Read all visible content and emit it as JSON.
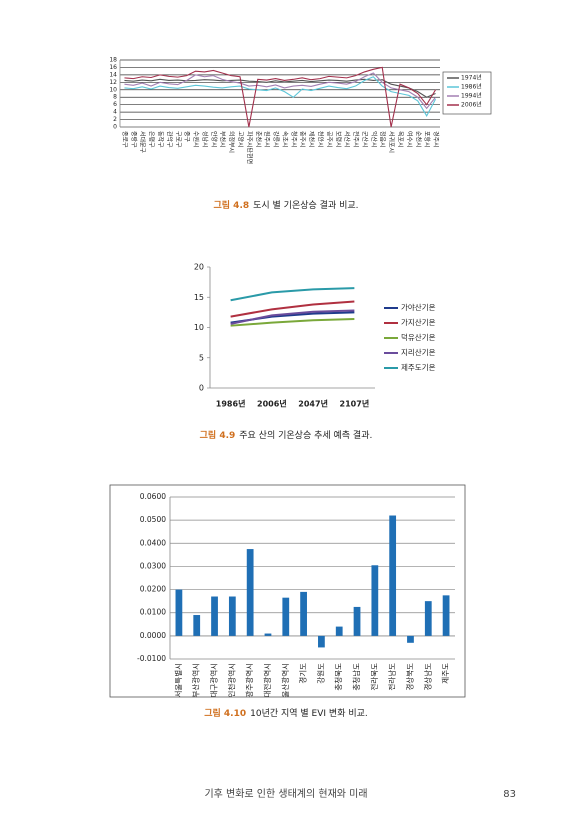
{
  "chart_data": [
    {
      "type": "line",
      "caption": {
        "label": "그림 4.8",
        "text": "도시 별 기온상승 결과 비교."
      },
      "categories": [
        "종로구",
        "중랑구",
        "서대문구",
        "은평구",
        "동작구",
        "관악구",
        "구로구",
        "중구",
        "수원시",
        "성남시",
        "안양시",
        "부천시",
        "의정부시",
        "고양시",
        "파주시탄현면",
        "춘천시",
        "원주시",
        "강릉시",
        "속초시",
        "청주시",
        "충주시",
        "제천시",
        "천안시",
        "공주시",
        "보령시",
        "서산시",
        "전주시",
        "군산시",
        "익산시",
        "정읍시",
        "서귀포시",
        "목포시",
        "여수시",
        "순천시",
        "포항시",
        "경주시"
      ],
      "series": [
        {
          "name": "1974년",
          "color": "#555555",
          "values": [
            12.5,
            12.3,
            12.6,
            12.4,
            12.8,
            12.5,
            12.6,
            12.4,
            12.5,
            12.7,
            12.6,
            12.4,
            12.5,
            12.6,
            12.3,
            12.2,
            12.0,
            12.4,
            12.1,
            12.3,
            12.5,
            12.2,
            12.4,
            12.6,
            12.5,
            12.3,
            12.6,
            12.8,
            12.5,
            12.7,
            11.5,
            11.0,
            10.5,
            9.5,
            8.0,
            9.0
          ]
        },
        {
          "name": "1986년",
          "color": "#5cc6d8",
          "values": [
            10.5,
            10.3,
            10.8,
            10.2,
            11.0,
            10.6,
            10.4,
            10.8,
            11.2,
            11.0,
            10.7,
            10.5,
            10.8,
            11.0,
            10.2,
            10.0,
            9.8,
            10.5,
            9.5,
            8.0,
            10.2,
            9.8,
            10.4,
            11.0,
            10.6,
            10.3,
            11.0,
            12.5,
            13.5,
            11.0,
            9.5,
            9.0,
            8.5,
            7.0,
            3.0,
            7.5
          ]
        },
        {
          "name": "1994년",
          "color": "#a27fb2",
          "values": [
            11.5,
            11.2,
            11.8,
            11.0,
            12.0,
            11.6,
            11.4,
            12.5,
            14.0,
            13.5,
            13.8,
            12.8,
            12.2,
            11.8,
            11.0,
            11.2,
            10.8,
            11.3,
            10.5,
            11.0,
            11.2,
            10.9,
            11.5,
            12.0,
            11.8,
            11.5,
            12.2,
            13.5,
            14.5,
            12.0,
            10.5,
            10.0,
            9.5,
            8.0,
            5.0,
            8.0
          ]
        },
        {
          "name": "2006년",
          "color": "#a3304c",
          "values": [
            13.2,
            13.0,
            13.5,
            13.3,
            14.0,
            13.6,
            13.4,
            13.8,
            15.0,
            14.8,
            15.2,
            14.5,
            13.8,
            13.5,
            0,
            12.8,
            12.6,
            13.0,
            12.5,
            12.8,
            13.2,
            12.7,
            13.0,
            13.6,
            13.4,
            13.2,
            13.8,
            14.8,
            15.5,
            16.0,
            0,
            11.5,
            10.5,
            9.0,
            6.0,
            10.0
          ]
        }
      ],
      "ylim": [
        0,
        18
      ],
      "yticks": [
        0,
        2,
        4,
        6,
        8,
        10,
        12,
        14,
        16,
        18
      ],
      "grid": true
    },
    {
      "type": "line",
      "caption": {
        "label": "그림 4.9",
        "text": "주요 산의 기온상승 추세 예측 결과."
      },
      "categories": [
        "1986년",
        "2006년",
        "2047년",
        "2107년"
      ],
      "series": [
        {
          "name": "가야산기온",
          "color": "#1f3b8c",
          "values": [
            10.8,
            11.8,
            12.3,
            12.5
          ]
        },
        {
          "name": "가지산기온",
          "color": "#b03040",
          "values": [
            11.8,
            13.0,
            13.8,
            14.3
          ]
        },
        {
          "name": "덕유산기온",
          "color": "#7aa83a",
          "values": [
            10.3,
            10.8,
            11.2,
            11.4
          ]
        },
        {
          "name": "지리산기온",
          "color": "#6a4c9c",
          "values": [
            10.6,
            12.0,
            12.6,
            12.8
          ]
        },
        {
          "name": "제주도기온",
          "color": "#2a9aa8",
          "values": [
            14.5,
            15.8,
            16.3,
            16.5
          ]
        }
      ],
      "ylim": [
        0,
        20
      ],
      "yticks": [
        0,
        5,
        10,
        15,
        20
      ],
      "grid": false
    },
    {
      "type": "bar",
      "caption": {
        "label": "그림 4.10",
        "text": "10년간 지역 별 EVI 변화 비교."
      },
      "categories": [
        "서울특별시",
        "부산광역시",
        "대구광역시",
        "인천광역시",
        "광주광역시",
        "대전광역시",
        "울산광역시",
        "경기도",
        "강원도",
        "충청북도",
        "충청남도",
        "전라북도",
        "전라남도",
        "경상북도",
        "경상남도",
        "제주도"
      ],
      "values": [
        0.02,
        0.009,
        0.017,
        0.017,
        0.0375,
        0.001,
        0.0165,
        0.019,
        -0.005,
        0.004,
        0.0125,
        0.0305,
        0.052,
        -0.003,
        0.015,
        0.0175
      ],
      "color": "#1f6fb5",
      "ylim": [
        -0.01,
        0.06
      ],
      "yticks": [
        {
          "value": -0.01,
          "label": "-0.0100"
        },
        {
          "value": 0,
          "label": "0.0000"
        },
        {
          "value": 0.01,
          "label": "0.0100"
        },
        {
          "value": 0.02,
          "label": "0.0200"
        },
        {
          "value": 0.03,
          "label": "0.0300"
        },
        {
          "value": 0.04,
          "label": "0.0400"
        },
        {
          "value": 0.05,
          "label": "0.0500"
        },
        {
          "value": 0.06,
          "label": "0.0600"
        }
      ],
      "grid": true
    }
  ],
  "footer": {
    "text": "기후 변화로 인한 생태계의 현재와 미래",
    "page": 83
  }
}
